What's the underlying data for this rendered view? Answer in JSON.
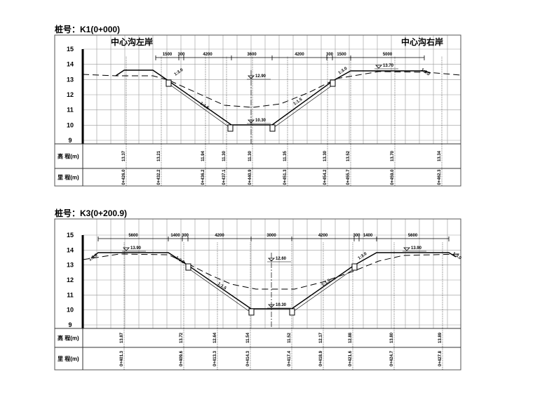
{
  "sections": [
    {
      "title": "桩号：K1(0+000)",
      "left_bank": "中心沟左岸",
      "right_bank": "中心沟右岸",
      "y_ticks": [
        "15",
        "14",
        "13",
        "12",
        "11",
        "10",
        "9"
      ],
      "row_labels": [
        "高  程(m)",
        "里  程(m)"
      ],
      "dimensions": [
        "1500",
        "300",
        "4200",
        "3600",
        "4200",
        "300",
        "1500",
        "5000"
      ],
      "water_levels": [
        "12.90",
        "10.30",
        "13.70"
      ],
      "slopes": [
        "1:3.0",
        "1:1.5",
        "1:1.5",
        "1:3.0",
        "1:3.0"
      ],
      "elevations": [
        "13.37",
        "13.21",
        "11.94",
        "11.30",
        "11.30",
        "11.35",
        "13.30",
        "13.52",
        "13.70",
        "13.34"
      ],
      "mileages": [
        "0+426.0",
        "0+432.2",
        "0+436.2",
        "0+437.1",
        "0+440.9",
        "0+451.3",
        "0+454.2",
        "0+455.7",
        "0+459.0",
        "0+462.3"
      ]
    },
    {
      "title": "桩号：K3(0+200.9)",
      "y_ticks": [
        "15",
        "14",
        "13",
        "12",
        "11",
        "10",
        "9"
      ],
      "row_labels": [
        "高  程(m)",
        "里  程(m)"
      ],
      "dimensions": [
        "5600",
        "1400",
        "300",
        "4200",
        "3000",
        "4200",
        "300",
        "1400",
        "5600"
      ],
      "water_levels": [
        "13.90",
        "12.60",
        "10.30",
        "13.90"
      ],
      "slopes": [
        "1:3.0",
        "1:3.0",
        "1:1.5",
        "1:1.5",
        "1:3.0",
        "1:3.0"
      ],
      "elevations": [
        "13.87",
        "13.72",
        "12.64",
        "11.54",
        "11.52",
        "12.17",
        "12.88",
        "13.80",
        "13.89"
      ],
      "mileages": [
        "0+401.3",
        "0+409.6",
        "0+413.3",
        "0+414.3",
        "0+417.4",
        "0+418.9",
        "0+421.6",
        "0+424.7",
        "0+427.8"
      ]
    }
  ]
}
